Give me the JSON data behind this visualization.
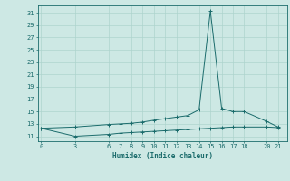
{
  "xlabel": "Humidex (Indice chaleur)",
  "ylabel": "",
  "background_color": "#cde8e4",
  "line_color": "#1a6b6b",
  "marker": "+",
  "x_ticks": [
    0,
    3,
    6,
    7,
    8,
    9,
    10,
    11,
    12,
    13,
    14,
    15,
    16,
    17,
    18,
    20,
    21
  ],
  "xlim": [
    -0.3,
    21.8
  ],
  "ylim": [
    10.2,
    32.2
  ],
  "y_ticks": [
    11,
    13,
    15,
    17,
    19,
    21,
    23,
    25,
    27,
    29,
    31
  ],
  "grid_color": "#aed4ce",
  "data_upper": [
    [
      0,
      12.3
    ],
    [
      3,
      12.5
    ],
    [
      6,
      12.9
    ],
    [
      7,
      13.0
    ],
    [
      8,
      13.1
    ],
    [
      9,
      13.3
    ],
    [
      10,
      13.6
    ],
    [
      11,
      13.85
    ],
    [
      12,
      14.1
    ],
    [
      13,
      14.35
    ],
    [
      14,
      15.3
    ],
    [
      15,
      31.3
    ],
    [
      16,
      15.5
    ],
    [
      17,
      15.0
    ],
    [
      18,
      15.0
    ],
    [
      20,
      13.4
    ],
    [
      21,
      12.5
    ]
  ],
  "data_lower": [
    [
      0,
      12.3
    ],
    [
      3,
      11.0
    ],
    [
      6,
      11.3
    ],
    [
      7,
      11.5
    ],
    [
      8,
      11.6
    ],
    [
      9,
      11.7
    ],
    [
      10,
      11.8
    ],
    [
      11,
      11.9
    ],
    [
      12,
      12.0
    ],
    [
      13,
      12.1
    ],
    [
      14,
      12.2
    ],
    [
      15,
      12.3
    ],
    [
      16,
      12.4
    ],
    [
      17,
      12.5
    ],
    [
      18,
      12.5
    ],
    [
      20,
      12.5
    ],
    [
      21,
      12.4
    ]
  ]
}
